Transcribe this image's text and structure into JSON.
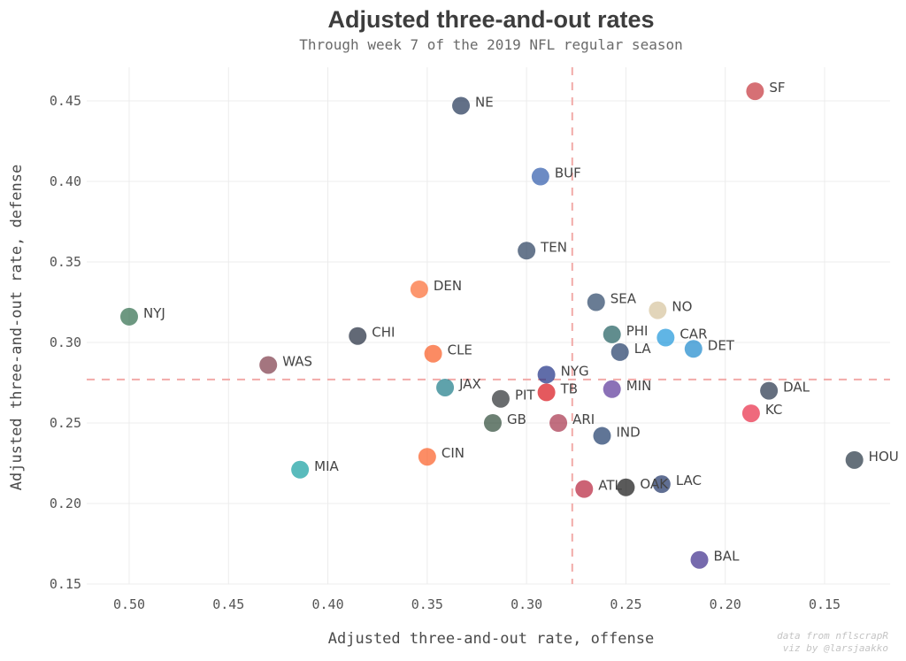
{
  "chart_data": {
    "type": "scatter",
    "title": "Adjusted three-and-out rates",
    "subtitle": "Through week 7 of the 2019 NFL regular season",
    "xlabel": "Adjusted three-and-out rate, offense",
    "ylabel": "Adjusted three-and-out rate, defense",
    "x_reversed": true,
    "xlim": [
      0.125,
      0.52
    ],
    "ylim": [
      0.15,
      0.47
    ],
    "xticks": [
      0.5,
      0.45,
      0.4,
      0.35,
      0.3,
      0.25,
      0.2,
      0.15
    ],
    "yticks": [
      0.15,
      0.2,
      0.25,
      0.3,
      0.35,
      0.4,
      0.45
    ],
    "xtick_labels": [
      "0.50",
      "0.45",
      "0.40",
      "0.35",
      "0.30",
      "0.25",
      "0.20",
      "0.15"
    ],
    "ytick_labels": [
      "0.15",
      "0.20",
      "0.25",
      "0.30",
      "0.35",
      "0.40",
      "0.45"
    ],
    "grid": true,
    "reference_lines": {
      "x_mean": 0.277,
      "y_mean": 0.277
    },
    "points": [
      {
        "team": "SF",
        "x": 0.185,
        "y": 0.456,
        "color": "#c4333b"
      },
      {
        "team": "NE",
        "x": 0.333,
        "y": 0.447,
        "color": "#1f3354"
      },
      {
        "team": "BUF",
        "x": 0.293,
        "y": 0.403,
        "color": "#2d5aab"
      },
      {
        "team": "TEN",
        "x": 0.3,
        "y": 0.357,
        "color": "#273d5c"
      },
      {
        "team": "DEN",
        "x": 0.354,
        "y": 0.333,
        "color": "#fb6a31"
      },
      {
        "team": "SEA",
        "x": 0.265,
        "y": 0.325,
        "color": "#2a4466"
      },
      {
        "team": "NO",
        "x": 0.234,
        "y": 0.32,
        "color": "#d6c39d"
      },
      {
        "team": "NYJ",
        "x": 0.5,
        "y": 0.316,
        "color": "#2f6c4b"
      },
      {
        "team": "PHI",
        "x": 0.257,
        "y": 0.305,
        "color": "#1e5c5e"
      },
      {
        "team": "CHI",
        "x": 0.385,
        "y": 0.304,
        "color": "#1f2a3c"
      },
      {
        "team": "CAR",
        "x": 0.23,
        "y": 0.303,
        "color": "#1c95da"
      },
      {
        "team": "DET",
        "x": 0.216,
        "y": 0.296,
        "color": "#1a87cc"
      },
      {
        "team": "LA",
        "x": 0.253,
        "y": 0.294,
        "color": "#1f3b66"
      },
      {
        "team": "CLE",
        "x": 0.347,
        "y": 0.293,
        "color": "#fa5a21"
      },
      {
        "team": "WAS",
        "x": 0.43,
        "y": 0.286,
        "color": "#7d3b48"
      },
      {
        "team": "NYG",
        "x": 0.29,
        "y": 0.28,
        "color": "#1c2f85"
      },
      {
        "team": "JAX",
        "x": 0.341,
        "y": 0.272,
        "color": "#1b7b88"
      },
      {
        "team": "MIN",
        "x": 0.257,
        "y": 0.271,
        "color": "#5a3598"
      },
      {
        "team": "DAL",
        "x": 0.178,
        "y": 0.27,
        "color": "#233249"
      },
      {
        "team": "TB",
        "x": 0.29,
        "y": 0.269,
        "color": "#d9121a"
      },
      {
        "team": "PIT",
        "x": 0.313,
        "y": 0.265,
        "color": "#2a2d30"
      },
      {
        "team": "KC",
        "x": 0.187,
        "y": 0.256,
        "color": "#e82945"
      },
      {
        "team": "GB",
        "x": 0.317,
        "y": 0.25,
        "color": "#2e4a38"
      },
      {
        "team": "ARI",
        "x": 0.284,
        "y": 0.25,
        "color": "#a6324a"
      },
      {
        "team": "IND",
        "x": 0.262,
        "y": 0.242,
        "color": "#1c3a6a"
      },
      {
        "team": "CIN",
        "x": 0.35,
        "y": 0.229,
        "color": "#fb5c24"
      },
      {
        "team": "HOU",
        "x": 0.135,
        "y": 0.227,
        "color": "#233341"
      },
      {
        "team": "MIA",
        "x": 0.414,
        "y": 0.221,
        "color": "#139ea0"
      },
      {
        "team": "LAC",
        "x": 0.232,
        "y": 0.212,
        "color": "#1d3265"
      },
      {
        "team": "OAK",
        "x": 0.25,
        "y": 0.21,
        "color": "#141414"
      },
      {
        "team": "ATL",
        "x": 0.271,
        "y": 0.209,
        "color": "#b6213b"
      },
      {
        "team": "BAL",
        "x": 0.213,
        "y": 0.165,
        "color": "#3c2b8a"
      }
    ],
    "credit_lines": [
      "data from nflscrapR",
      "viz by @larsjaakko"
    ]
  }
}
